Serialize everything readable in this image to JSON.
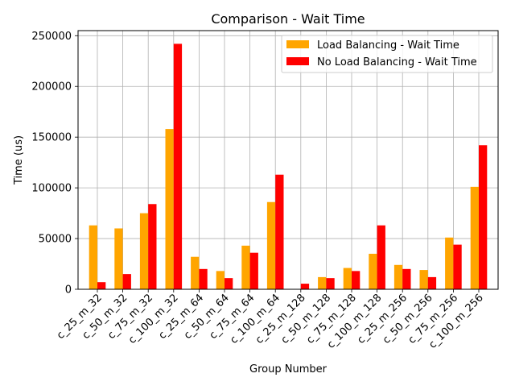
{
  "chart_data": {
    "type": "bar",
    "title": "Comparison - Wait Time",
    "xlabel": "Group Number",
    "ylabel": "Time (us)",
    "ylim": [
      0,
      255000
    ],
    "yticks": [
      0,
      50000,
      100000,
      150000,
      200000,
      250000
    ],
    "grid": true,
    "legend_position": "top-right",
    "categories": [
      "c_25_m_32",
      "c_50_m_32",
      "c_75_m_32",
      "c_100_m_32",
      "c_25_m_64",
      "c_50_m_64",
      "c_75_m_64",
      "c_100_m_64",
      "c_25_m_128",
      "c_50_m_128",
      "c_75_m_128",
      "c_100_m_128",
      "c_25_m_256",
      "c_50_m_256",
      "c_75_m_256",
      "c_100_m_256"
    ],
    "series": [
      {
        "name": "Load Balancing - Wait Time",
        "color": "#FFA500",
        "values": [
          63000,
          60000,
          75000,
          158000,
          32000,
          18000,
          43000,
          86000,
          0,
          12000,
          21000,
          35000,
          24000,
          19000,
          51000,
          101000
        ]
      },
      {
        "name": "No Load Balancing - Wait Time",
        "color": "#FF0000",
        "values": [
          7000,
          15000,
          84000,
          242000,
          20000,
          11000,
          36000,
          113000,
          5500,
          11000,
          18000,
          63000,
          20000,
          12000,
          44000,
          142000
        ]
      }
    ]
  }
}
